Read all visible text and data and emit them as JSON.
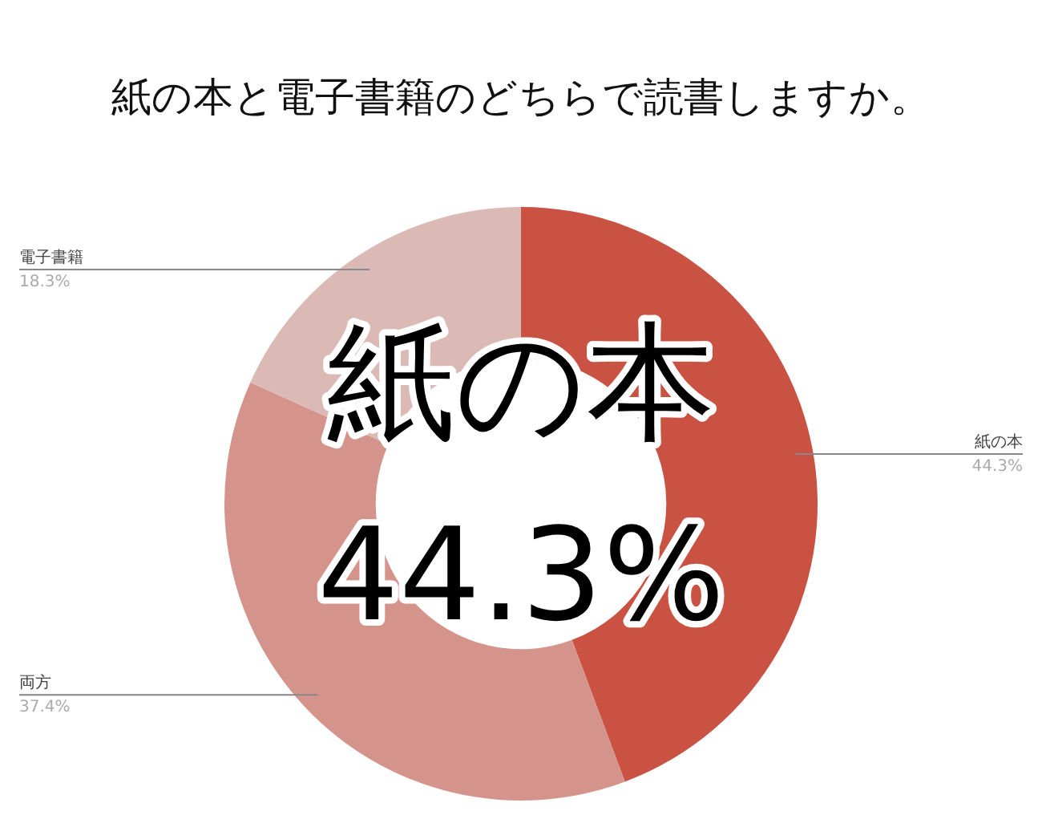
{
  "chart_data": {
    "type": "donut",
    "title": "紙の本と電子書籍のどちらで読書しますか。",
    "categories": [
      "紙の本",
      "両方",
      "電子書籍"
    ],
    "values": [
      44.3,
      37.4,
      18.3
    ],
    "value_labels": [
      "44.3%",
      "37.4%",
      "18.3%"
    ],
    "colors": [
      "#c95243",
      "#d4948c",
      "#dbbab6"
    ],
    "annotations": [
      "紙の本",
      "44.3%"
    ]
  }
}
